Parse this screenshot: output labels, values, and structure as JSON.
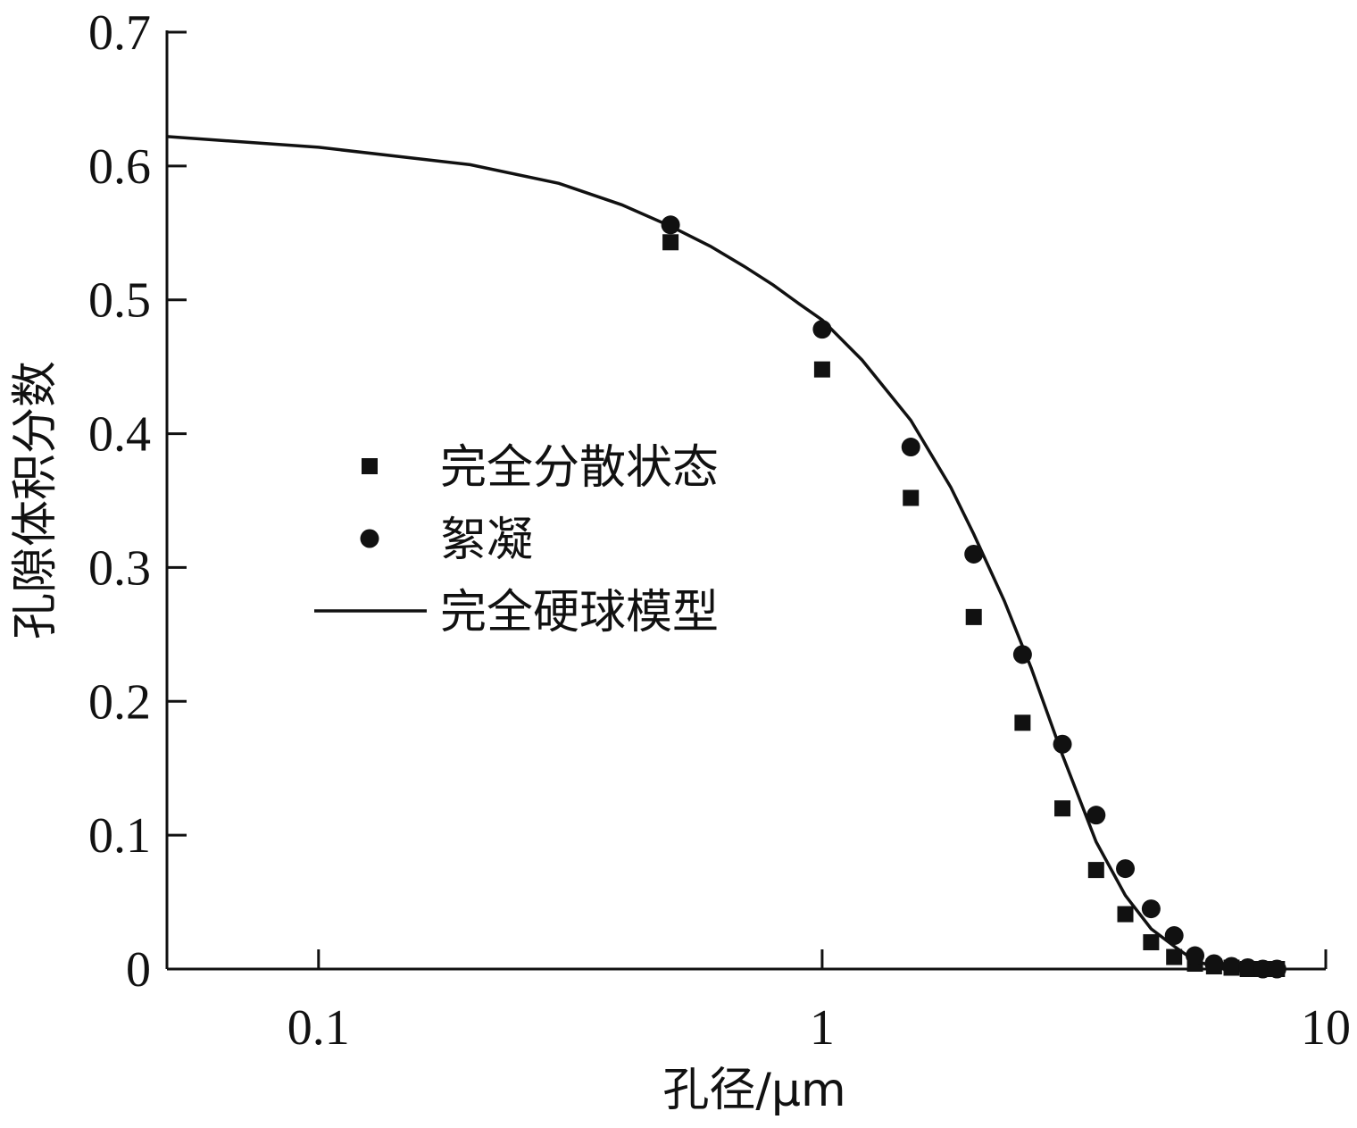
{
  "chart_data": {
    "type": "scatter",
    "xscale": "log",
    "xlim": [
      0.05,
      10
    ],
    "ylim": [
      0,
      0.7
    ],
    "xlabel": "孔径/μm",
    "ylabel": "孔隙体积分数",
    "xticks": [
      "0.1",
      "1",
      "10"
    ],
    "xtick_values": [
      0.1,
      1,
      10
    ],
    "yticks": [
      "0",
      "0.1",
      "0.2",
      "0.3",
      "0.4",
      "0.5",
      "0.6",
      "0.7"
    ],
    "ytick_values": [
      0,
      0.1,
      0.2,
      0.3,
      0.4,
      0.5,
      0.6,
      0.7
    ],
    "legend_position": "center-left",
    "series": [
      {
        "name": "完全分散状态",
        "marker": "square",
        "points": [
          [
            0.5,
            0.543
          ],
          [
            1.0,
            0.448
          ],
          [
            1.5,
            0.352
          ],
          [
            2.0,
            0.263
          ],
          [
            2.5,
            0.184
          ],
          [
            3.0,
            0.12
          ],
          [
            3.5,
            0.074
          ],
          [
            4.0,
            0.041
          ],
          [
            4.5,
            0.02
          ],
          [
            5.0,
            0.009
          ],
          [
            5.5,
            0.004
          ],
          [
            6.0,
            0.002
          ],
          [
            6.5,
            0.001
          ],
          [
            7.0,
            0.0
          ],
          [
            7.5,
            0.0
          ],
          [
            8.0,
            0.0
          ]
        ]
      },
      {
        "name": "絮凝",
        "marker": "circle",
        "points": [
          [
            0.5,
            0.556
          ],
          [
            1.0,
            0.478
          ],
          [
            1.5,
            0.39
          ],
          [
            2.0,
            0.31
          ],
          [
            2.5,
            0.235
          ],
          [
            3.0,
            0.168
          ],
          [
            3.5,
            0.115
          ],
          [
            4.0,
            0.075
          ],
          [
            4.5,
            0.045
          ],
          [
            5.0,
            0.025
          ],
          [
            5.5,
            0.01
          ],
          [
            6.0,
            0.004
          ],
          [
            6.5,
            0.002
          ],
          [
            7.0,
            0.001
          ],
          [
            7.5,
            0.0
          ],
          [
            8.0,
            0.0
          ]
        ]
      },
      {
        "name": "完全硬球模型",
        "marker": "line",
        "points": [
          [
            0.05,
            0.622
          ],
          [
            0.1,
            0.614
          ],
          [
            0.2,
            0.601
          ],
          [
            0.3,
            0.587
          ],
          [
            0.4,
            0.571
          ],
          [
            0.5,
            0.555
          ],
          [
            0.6,
            0.54
          ],
          [
            0.7,
            0.525
          ],
          [
            0.8,
            0.511
          ],
          [
            0.9,
            0.497
          ],
          [
            1.0,
            0.485
          ],
          [
            1.2,
            0.455
          ],
          [
            1.5,
            0.41
          ],
          [
            1.8,
            0.36
          ],
          [
            2.0,
            0.325
          ],
          [
            2.3,
            0.275
          ],
          [
            2.6,
            0.225
          ],
          [
            3.0,
            0.16
          ],
          [
            3.5,
            0.095
          ],
          [
            4.0,
            0.055
          ],
          [
            4.5,
            0.03
          ],
          [
            5.0,
            0.017
          ],
          [
            5.5,
            0.006
          ],
          [
            6.0,
            0.002
          ],
          [
            7.0,
            0.0
          ],
          [
            8.0,
            0.0
          ]
        ]
      }
    ]
  }
}
